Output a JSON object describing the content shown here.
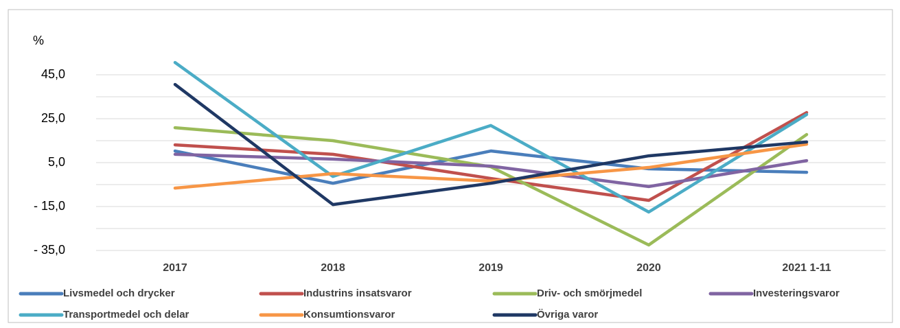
{
  "chart_data": {
    "type": "line",
    "ylabel": "%",
    "categories": [
      "2017",
      "2018",
      "2019",
      "2020",
      "2021 1-11"
    ],
    "ylim": [
      -35,
      60
    ],
    "yticks": [
      {
        "value": 45,
        "label": "45,0"
      },
      {
        "value": 25,
        "label": "25,0"
      },
      {
        "value": 5,
        "label": "5,0"
      },
      {
        "value": -15,
        "label": "- 15,0"
      },
      {
        "value": -35,
        "label": "- 35,0"
      }
    ],
    "minor_yticks": [
      35,
      15,
      -5,
      -25
    ],
    "grid": true,
    "legend": "bottom",
    "series": [
      {
        "name": "Livsmedel och drycker",
        "color": "#4a7ebb",
        "values": [
          10.3,
          -4.4,
          10.3,
          2.2,
          0.6
        ]
      },
      {
        "name": "Industrins insatsvaror",
        "color": "#c0504d",
        "values": [
          13.1,
          8.8,
          -2.2,
          -12.2,
          27.8
        ]
      },
      {
        "name": "Driv- och smörjmedel",
        "color": "#9bbb59",
        "values": [
          20.9,
          15,
          3.1,
          -32.5,
          17.8
        ]
      },
      {
        "name": "Investeringsvaror",
        "color": "#8064a2",
        "values": [
          8.8,
          6.6,
          3.4,
          -5.9,
          5.9
        ]
      },
      {
        "name": "Transportmedel och delar",
        "color": "#4bacc6",
        "values": [
          50.6,
          -1.3,
          21.9,
          -17.5,
          26.9
        ]
      },
      {
        "name": "Konsumtionsvaror",
        "color": "#f79646",
        "values": [
          -6.6,
          0,
          -3.4,
          2.8,
          13.4
        ]
      },
      {
        "name": "Övriga varor",
        "color": "#1f3864",
        "values": [
          40.6,
          -14.1,
          -4.4,
          8.1,
          14.4
        ]
      }
    ]
  }
}
